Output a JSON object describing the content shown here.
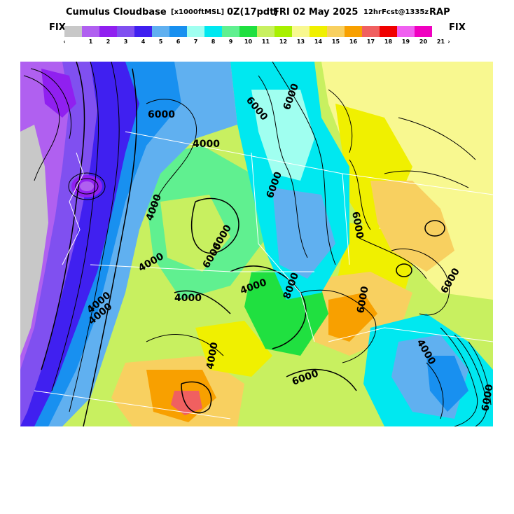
{
  "title": {
    "main": "Cumulus Cloudbase",
    "units": "[x1000ftMSL]",
    "run": "0Z(17pdt)",
    "valid": "FRI 02 May 2025",
    "forecast": "12hrFcst@1335z",
    "model": "RAP"
  },
  "colorbar": {
    "fix_left": "FIX",
    "fix_right": "FIX",
    "less_than": "‹",
    "greater_than": "›",
    "tick_labels": [
      "1",
      "2",
      "3",
      "4",
      "5",
      "6",
      "7",
      "8",
      "9",
      "10",
      "11",
      "12",
      "13",
      "14",
      "15",
      "16",
      "17",
      "18",
      "19",
      "20",
      "21"
    ],
    "colors": [
      "#c8c8c8",
      "#b060f0",
      "#9020f0",
      "#8050f0",
      "#4020f0",
      "#60b0f0",
      "#1890f0",
      "#a0fff0",
      "#00e8f0",
      "#60f090",
      "#20e040",
      "#c8f060",
      "#a8f000",
      "#f8f890",
      "#f0f000",
      "#f8d060",
      "#f8a000",
      "#f06060",
      "#f00000",
      "#f060f0",
      "#f000c0"
    ]
  },
  "map": {
    "contour_labels": [
      "6000",
      "6000",
      "6000",
      "4000",
      "4000",
      "4000",
      "6000",
      "6000",
      "4000",
      "4000",
      "6000",
      "6000",
      "4000",
      "4000",
      "8000",
      "6000",
      "6000",
      "4000",
      "6000",
      "4000",
      "6000"
    ]
  }
}
